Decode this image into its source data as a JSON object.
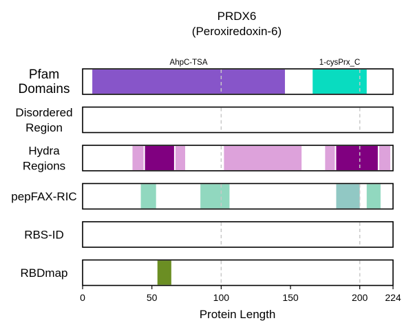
{
  "chart_data": {
    "type": "domain-track",
    "title": "PRDX6",
    "subtitle": "(Peroxiredoxin-6)",
    "xlabel": "Protein Length",
    "xlim": [
      0,
      224
    ],
    "xticks": [
      0,
      50,
      100,
      150,
      200,
      224
    ],
    "reference_lines": [
      100,
      200
    ],
    "tracks": [
      {
        "label": [
          "Pfam",
          "Domains"
        ],
        "features": [
          {
            "start": 7,
            "end": 146,
            "color": "#8755c9",
            "label": "AhpC-TSA"
          },
          {
            "start": 166,
            "end": 205,
            "color": "#09dcc0",
            "label": "1-cysPrx_C"
          }
        ]
      },
      {
        "label": [
          "Disordered",
          "Region"
        ],
        "features": []
      },
      {
        "label": [
          "Hydra",
          "Regions"
        ],
        "features": [
          {
            "start": 36,
            "end": 44,
            "color": "#dda2db"
          },
          {
            "start": 45,
            "end": 66,
            "color": "#800080"
          },
          {
            "start": 67,
            "end": 74,
            "color": "#dda2db"
          },
          {
            "start": 102,
            "end": 158,
            "color": "#dda2db"
          },
          {
            "start": 175,
            "end": 182,
            "color": "#dda2db"
          },
          {
            "start": 183,
            "end": 213,
            "color": "#800080"
          },
          {
            "start": 214,
            "end": 222,
            "color": "#dda2db"
          }
        ]
      },
      {
        "label": [
          "pepFAX-RIC"
        ],
        "features": [
          {
            "start": 42,
            "end": 53,
            "color": "#91d8bf"
          },
          {
            "start": 85,
            "end": 106,
            "color": "#91d8bf"
          },
          {
            "start": 183,
            "end": 200,
            "color": "#91c8c4"
          },
          {
            "start": 205,
            "end": 215,
            "color": "#91d8bf"
          }
        ]
      },
      {
        "label": [
          "RBS-ID"
        ],
        "features": []
      },
      {
        "label": [
          "RBDmap"
        ],
        "features": [
          {
            "start": 54,
            "end": 64,
            "color": "#6b8e23"
          }
        ]
      }
    ]
  }
}
